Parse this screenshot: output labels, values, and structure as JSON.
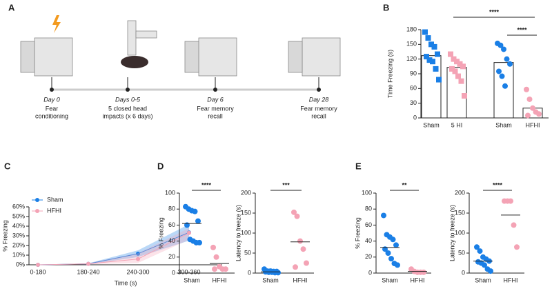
{
  "panel_labels": [
    "A",
    "B",
    "C",
    "D",
    "E"
  ],
  "timeline": [
    {
      "day": "Day 0",
      "desc": [
        "Fear",
        "conditioning"
      ]
    },
    {
      "day": "Days 0-5",
      "desc": [
        "5 closed head",
        "impacts (x 6 days)"
      ]
    },
    {
      "day": "Day 6",
      "desc": [
        "Fear memory",
        "recall"
      ]
    },
    {
      "day": "Day 28",
      "desc": [
        "Fear memory",
        "recall"
      ]
    }
  ],
  "chart_data": [
    {
      "type": "bar_scatter",
      "ylabel": "Time Freezing (s)",
      "ylim": [
        0,
        180
      ],
      "yticks": [
        0,
        30,
        60,
        90,
        120,
        150,
        180
      ],
      "categories": [
        "Sham",
        "5 HI",
        "Sham",
        "HFHI"
      ],
      "groups": [
        {
          "color": "#1a7fe6",
          "marker": "square",
          "mean": 127,
          "points": [
            175,
            163,
            150,
            145,
            130,
            125,
            118,
            115,
            100,
            78
          ]
        },
        {
          "color": "#f4a3b5",
          "marker": "square",
          "mean": 103,
          "points": [
            130,
            120,
            115,
            110,
            105,
            100,
            95,
            85,
            75,
            45
          ]
        },
        {
          "color": "#1a7fe6",
          "marker": "circle",
          "mean": 113,
          "points": [
            152,
            148,
            140,
            120,
            110,
            95,
            85,
            65
          ]
        },
        {
          "color": "#f4a3b5",
          "marker": "circle",
          "mean": 20,
          "points": [
            58,
            38,
            20,
            12,
            8,
            5
          ]
        }
      ],
      "annotations": [
        "****",
        "****"
      ]
    },
    {
      "type": "line",
      "xlabel": "Time (s)",
      "ylabel": "% Freezing",
      "legend": "upper left",
      "categories": [
        "0-180",
        "180-240",
        "240-300",
        "300-360"
      ],
      "ylim": [
        0,
        60
      ],
      "yticks": [
        {
          "value": 0,
          "label": "0%"
        },
        {
          "value": 10,
          "label": "10%"
        },
        {
          "value": 20,
          "label": "20%"
        },
        {
          "value": 30,
          "label": "30%"
        },
        {
          "value": 40,
          "label": "40%"
        },
        {
          "value": 50,
          "label": "50%"
        },
        {
          "value": 60,
          "label": "60%"
        }
      ],
      "series": [
        {
          "name": "Sham",
          "color": "#1a7fe6",
          "values": [
            0,
            1,
            11.5,
            33.5
          ],
          "lower": [
            0,
            0.5,
            8,
            25
          ],
          "upper": [
            0,
            1.5,
            15,
            42
          ]
        },
        {
          "name": "HFHI",
          "color": "#f4a3b5",
          "values": [
            0,
            1,
            6,
            33
          ],
          "lower": [
            0,
            0.5,
            2,
            26
          ],
          "upper": [
            0,
            1.5,
            12,
            38
          ]
        }
      ]
    },
    {
      "type": "dot",
      "ylabel": "% Freezing",
      "ylim": [
        0,
        100
      ],
      "yticks": [
        0,
        20,
        40,
        60,
        80,
        100
      ],
      "categories": [
        "Sham",
        "HFHI"
      ],
      "groups": [
        {
          "color": "#1a7fe6",
          "mean": 62,
          "points": [
            83,
            80,
            78,
            77,
            65,
            60,
            42,
            40,
            38,
            38
          ]
        },
        {
          "color": "#f4a3b5",
          "mean": 12,
          "points": [
            32,
            20,
            8,
            5,
            5,
            5
          ]
        }
      ],
      "annotations": [
        "****"
      ]
    },
    {
      "type": "dot",
      "ylabel": "Latency to freeze (s)",
      "ylim": [
        0,
        200
      ],
      "yticks": [
        0,
        50,
        100,
        150,
        200
      ],
      "categories": [
        "Sham",
        "HFHI"
      ],
      "groups": [
        {
          "color": "#1a7fe6",
          "mean": 3,
          "points": [
            10,
            5,
            5,
            4,
            4,
            3,
            2,
            2,
            1,
            1
          ]
        },
        {
          "color": "#f4a3b5",
          "mean": 78,
          "points": [
            152,
            142,
            80,
            60,
            25,
            15
          ]
        }
      ],
      "annotations": [
        "***"
      ]
    },
    {
      "type": "dot",
      "ylabel": "% Freezing",
      "ylim": [
        0,
        100
      ],
      "yticks": [
        0,
        20,
        40,
        60,
        80,
        100
      ],
      "categories": [
        "Sham",
        "HFHI"
      ],
      "groups": [
        {
          "color": "#1a7fe6",
          "mean": 32,
          "points": [
            72,
            48,
            45,
            42,
            35,
            30,
            25,
            18,
            12,
            10
          ]
        },
        {
          "color": "#f4a3b5",
          "mean": 2,
          "points": [
            5,
            2,
            1,
            1,
            1
          ]
        }
      ],
      "annotations": [
        "**"
      ]
    },
    {
      "type": "dot",
      "ylabel": "Latency to freeze (s)",
      "ylim": [
        0,
        200
      ],
      "yticks": [
        0,
        50,
        100,
        150,
        200
      ],
      "categories": [
        "Sham",
        "HFHI"
      ],
      "groups": [
        {
          "color": "#1a7fe6",
          "mean": 30,
          "points": [
            65,
            55,
            40,
            35,
            30,
            28,
            25,
            20,
            10,
            5
          ]
        },
        {
          "color": "#f4a3b5",
          "mean": 145,
          "points": [
            180,
            180,
            180,
            120,
            65
          ]
        }
      ],
      "annotations": [
        "****"
      ]
    }
  ]
}
